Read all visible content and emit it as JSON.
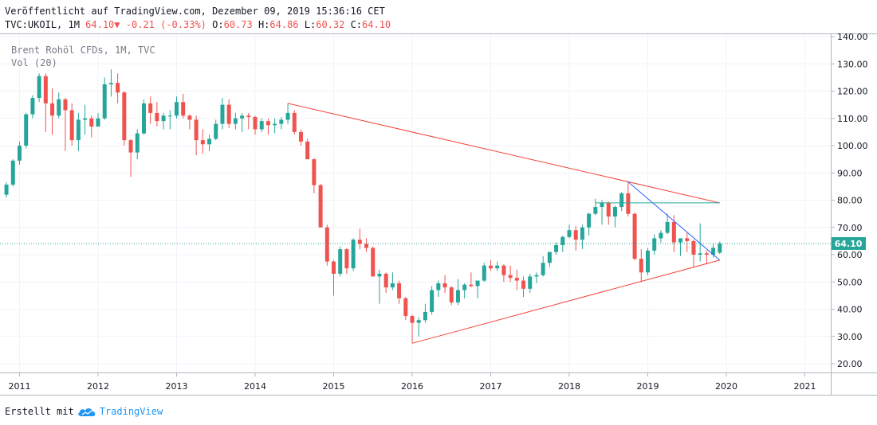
{
  "header": {
    "published": "Veröffentlicht auf TradingView.com, Dezember 09, 2019 15:36:16 CET",
    "symbol": "TVC:UKOIL, 1M",
    "last": "64.10",
    "change": "-0.21 (-0.33%)",
    "open_label": "O:",
    "open": "60.73",
    "high_label": "H:",
    "high": "64.86",
    "low_label": "L:",
    "low": "60.32",
    "close_label": "C:",
    "close": "64.10"
  },
  "legend": {
    "instrument": "Brent Rohöl CFDs, 1M, TVC",
    "indicator": "Vol (20)"
  },
  "footer": {
    "created_with": "Erstellt mit",
    "brand": "TradingView"
  },
  "colors": {
    "up": "#26a69a",
    "down": "#ef5350",
    "trendline_red": "#f44336",
    "trendline_blue": "#2962ff",
    "hline_green": "#26a69a",
    "price_tag": "#26a69a"
  },
  "chart_data": {
    "type": "candlestick",
    "interval": "1M",
    "price_axis": {
      "min": 15,
      "max": 142,
      "ticks": [
        20,
        30,
        40,
        50,
        60,
        70,
        80,
        90,
        100,
        110,
        120,
        130,
        140
      ],
      "tick_labels": [
        "20.00",
        "30.00",
        "40.00",
        "50.00",
        "60.00",
        "70.00",
        "80.00",
        "90.00",
        "100.00",
        "110.00",
        "120.00",
        "130.00",
        "140.00"
      ]
    },
    "time_axis": {
      "start": "2010-11",
      "end": "2021-08",
      "labels": [
        "2011",
        "2012",
        "2013",
        "2014",
        "2015",
        "2016",
        "2017",
        "2018",
        "2019",
        "2020",
        "2021"
      ]
    },
    "last_price": 64.1,
    "candles": [
      [
        "2010-11",
        82,
        86.5,
        81,
        85.7
      ],
      [
        "2010-12",
        85.7,
        95,
        85,
        94.5
      ],
      [
        "2011-01",
        94.5,
        101.5,
        93,
        100
      ],
      [
        "2011-02",
        100,
        112,
        99,
        111.5
      ],
      [
        "2011-03",
        111.5,
        118.5,
        110,
        117.5
      ],
      [
        "2011-04",
        117.5,
        126.5,
        116,
        125.5
      ],
      [
        "2011-05",
        125.5,
        126.5,
        105,
        115.5
      ],
      [
        "2011-06",
        115.5,
        121,
        104,
        111
      ],
      [
        "2011-07",
        111,
        119.5,
        110,
        117
      ],
      [
        "2011-08",
        117,
        117.5,
        98,
        113
      ],
      [
        "2011-09",
        113,
        115.5,
        100,
        102
      ],
      [
        "2011-10",
        102,
        112,
        98,
        109.5
      ],
      [
        "2011-11",
        109.5,
        115,
        104,
        110
      ],
      [
        "2011-12",
        110,
        111,
        103,
        107
      ],
      [
        "2012-01",
        107,
        112,
        107,
        110
      ],
      [
        "2012-02",
        110,
        125,
        109.5,
        122.5
      ],
      [
        "2012-03",
        122.5,
        128,
        118,
        123
      ],
      [
        "2012-04",
        123,
        126.5,
        115.5,
        119.5
      ],
      [
        "2012-05",
        119.5,
        120,
        100,
        102
      ],
      [
        "2012-06",
        102,
        102.5,
        88.5,
        97.5
      ],
      [
        "2012-07",
        97.5,
        106,
        95,
        104.5
      ],
      [
        "2012-08",
        104.5,
        117,
        104,
        115.5
      ],
      [
        "2012-09",
        115.5,
        118,
        108,
        112
      ],
      [
        "2012-10",
        112,
        116,
        107,
        109
      ],
      [
        "2012-11",
        109,
        112,
        106,
        111
      ],
      [
        "2012-12",
        111,
        113,
        106,
        111
      ],
      [
        "2013-01",
        111,
        118,
        110,
        116
      ],
      [
        "2013-02",
        116,
        119,
        110,
        111
      ],
      [
        "2013-03",
        111,
        111.5,
        106,
        109.5
      ],
      [
        "2013-04",
        109.5,
        111,
        96.5,
        102
      ],
      [
        "2013-05",
        102,
        106,
        97,
        100.5
      ],
      [
        "2013-06",
        100.5,
        104,
        98,
        102.5
      ],
      [
        "2013-07",
        102.5,
        109.5,
        102,
        108
      ],
      [
        "2013-08",
        108,
        117.5,
        106,
        115
      ],
      [
        "2013-09",
        115,
        117,
        106.5,
        108
      ],
      [
        "2013-10",
        108,
        112,
        106,
        110
      ],
      [
        "2013-11",
        110,
        112,
        105,
        111
      ],
      [
        "2013-12",
        111,
        112,
        106,
        110.5
      ],
      [
        "2014-01",
        110.5,
        111,
        104,
        106
      ],
      [
        "2014-02",
        106,
        110,
        105,
        109
      ],
      [
        "2014-03",
        109,
        110,
        104,
        107.5
      ],
      [
        "2014-04",
        107.5,
        110,
        104.5,
        108
      ],
      [
        "2014-05",
        108,
        110.5,
        106,
        109.5
      ],
      [
        "2014-06",
        109.5,
        115.5,
        108,
        112
      ],
      [
        "2014-07",
        112,
        113,
        104,
        105
      ],
      [
        "2014-08",
        105,
        106,
        100,
        101.5
      ],
      [
        "2014-09",
        101.5,
        102.5,
        95,
        95
      ],
      [
        "2014-10",
        95,
        95.5,
        82.5,
        85.5
      ],
      [
        "2014-11",
        85.5,
        86,
        70,
        70
      ],
      [
        "2014-12",
        70,
        71,
        56,
        57.5
      ],
      [
        "2015-01",
        57.5,
        58,
        45,
        53
      ],
      [
        "2015-02",
        53,
        63,
        52,
        62
      ],
      [
        "2015-03",
        62,
        62.5,
        53,
        55
      ],
      [
        "2015-04",
        55,
        66,
        54,
        65.5
      ],
      [
        "2015-05",
        65.5,
        69.5,
        62,
        64
      ],
      [
        "2015-06",
        64,
        66,
        61,
        62.5
      ],
      [
        "2015-07",
        62.5,
        63,
        52,
        52
      ],
      [
        "2015-08",
        52,
        54.5,
        42,
        53
      ],
      [
        "2015-09",
        53,
        53.5,
        46,
        48
      ],
      [
        "2015-10",
        48,
        53.5,
        47,
        49.5
      ],
      [
        "2015-11",
        49.5,
        50.5,
        42,
        44
      ],
      [
        "2015-12",
        44,
        44.5,
        36,
        37.5
      ],
      [
        "2016-01",
        37.5,
        38,
        27.5,
        35
      ],
      [
        "2016-02",
        35,
        37,
        30,
        36
      ],
      [
        "2016-03",
        36,
        42,
        35,
        39
      ],
      [
        "2016-04",
        39,
        48.5,
        38,
        47
      ],
      [
        "2016-05",
        47,
        50.5,
        44.5,
        49.5
      ],
      [
        "2016-06",
        49.5,
        52.5,
        46,
        48
      ],
      [
        "2016-07",
        48,
        48.5,
        41.5,
        42.5
      ],
      [
        "2016-08",
        42.5,
        51,
        41.5,
        47
      ],
      [
        "2016-09",
        47,
        49.5,
        44,
        49
      ],
      [
        "2016-10",
        49,
        53.5,
        48,
        48.5
      ],
      [
        "2016-11",
        48.5,
        50,
        44,
        50.5
      ],
      [
        "2016-12",
        50.5,
        57,
        50,
        56
      ],
      [
        "2017-01",
        56,
        58,
        54,
        55
      ],
      [
        "2017-02",
        55,
        57.5,
        54,
        56
      ],
      [
        "2017-03",
        56,
        56.5,
        50,
        52.5
      ],
      [
        "2017-04",
        52.5,
        56,
        50,
        51.5
      ],
      [
        "2017-05",
        51.5,
        54.5,
        47,
        50.5
      ],
      [
        "2017-06",
        50.5,
        52,
        44.5,
        47.5
      ],
      [
        "2017-07",
        47.5,
        53,
        46,
        52
      ],
      [
        "2017-08",
        52,
        53.5,
        49.5,
        52.5
      ],
      [
        "2017-09",
        52.5,
        59.5,
        52,
        57
      ],
      [
        "2017-10",
        57,
        61,
        55.5,
        61
      ],
      [
        "2017-11",
        61,
        64.5,
        60,
        63.5
      ],
      [
        "2017-12",
        63.5,
        67,
        61,
        66.5
      ],
      [
        "2018-01",
        66.5,
        71,
        66,
        69
      ],
      [
        "2018-02",
        69,
        70.5,
        61.5,
        65.5
      ],
      [
        "2018-03",
        65.5,
        71,
        62,
        70
      ],
      [
        "2018-04",
        70,
        75.5,
        67,
        75
      ],
      [
        "2018-05",
        75,
        80.5,
        74.5,
        77.5
      ],
      [
        "2018-06",
        77.5,
        80,
        71,
        79
      ],
      [
        "2018-07",
        79,
        79.5,
        71,
        74
      ],
      [
        "2018-08",
        74,
        78,
        70,
        77.5
      ],
      [
        "2018-09",
        77.5,
        83,
        76,
        82.5
      ],
      [
        "2018-10",
        82.5,
        86.7,
        74,
        75
      ],
      [
        "2018-11",
        75,
        75.5,
        58,
        58.5
      ],
      [
        "2018-12",
        58.5,
        62,
        50,
        53.5
      ],
      [
        "2019-01",
        53.5,
        62.5,
        52.5,
        61.5
      ],
      [
        "2019-02",
        61.5,
        67.5,
        60,
        66
      ],
      [
        "2019-03",
        66,
        69,
        64.5,
        68
      ],
      [
        "2019-04",
        68,
        75,
        67.5,
        72
      ],
      [
        "2019-05",
        72,
        74.5,
        61,
        64.5
      ],
      [
        "2019-06",
        64.5,
        66,
        59.5,
        66
      ],
      [
        "2019-07",
        66,
        68,
        61,
        65
      ],
      [
        "2019-08",
        65,
        65.5,
        55.5,
        60
      ],
      [
        "2019-09",
        60,
        71.5,
        57.5,
        60.5
      ],
      [
        "2019-10",
        60.5,
        61.5,
        56.5,
        60
      ],
      [
        "2019-11",
        60,
        64,
        59,
        62.5
      ],
      [
        "2019-12",
        60.73,
        64.86,
        60.32,
        64.1
      ]
    ],
    "drawings": [
      {
        "kind": "trendline",
        "color": "trendline_red",
        "from": [
          "2014-06",
          115.5
        ],
        "to": [
          "2019-12",
          79
        ]
      },
      {
        "kind": "trendline",
        "color": "trendline_red",
        "from": [
          "2016-01",
          27.5
        ],
        "to": [
          "2019-12",
          58
        ]
      },
      {
        "kind": "trendline",
        "color": "trendline_blue",
        "from": [
          "2018-10",
          86.7
        ],
        "to": [
          "2019-12",
          58
        ]
      },
      {
        "kind": "horizontal",
        "color": "hline_green",
        "from": [
          "2018-05",
          79
        ],
        "to": [
          "2019-12",
          79
        ]
      }
    ]
  }
}
